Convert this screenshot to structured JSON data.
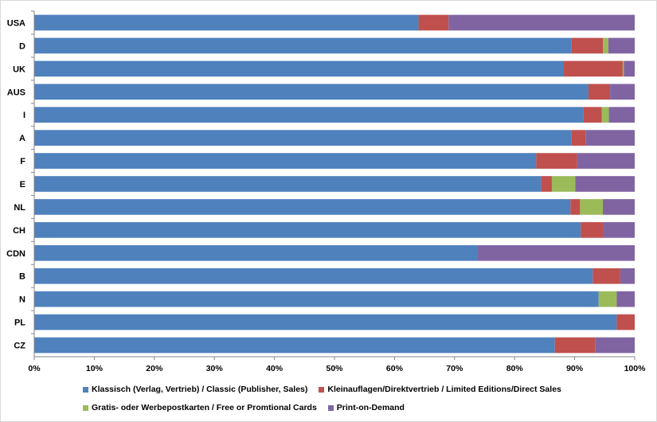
{
  "chart_data": {
    "type": "bar",
    "orientation": "horizontal",
    "stacked": "percent",
    "categories": [
      "USA",
      "D",
      "UK",
      "AUS",
      "I",
      "A",
      "F",
      "E",
      "NL",
      "CH",
      "CDN",
      "B",
      "N",
      "PL",
      "CZ"
    ],
    "series": [
      {
        "name": "Klassisch (Verlag, Vertrieb) / Classic (Publisher, Sales)",
        "color": "#4f81bd",
        "values": [
          64,
          89.5,
          88.2,
          92.3,
          91.5,
          89.5,
          83.6,
          84.4,
          89.3,
          91,
          73.8,
          93,
          94,
          97,
          86.7
        ]
      },
      {
        "name": "Kleinauflagen/Direktvertrieb / Limited Editions/Direct Sales",
        "color": "#c0504d",
        "values": [
          5,
          5.2,
          9.8,
          3.6,
          3,
          2.3,
          6.8,
          1.8,
          1.6,
          3.7,
          0,
          4.6,
          0,
          3,
          6.7
        ]
      },
      {
        "name": "Gratis- oder Werbepostkarten / Free or Promtional Cards",
        "color": "#9bbb59",
        "values": [
          0,
          0.9,
          0.2,
          0,
          1.2,
          0,
          0,
          3.9,
          3.8,
          0,
          0,
          0,
          3,
          0,
          0
        ]
      },
      {
        "name": "Print-on-Demand",
        "color": "#8064a2",
        "values": [
          31,
          4.4,
          1.8,
          4.1,
          4.3,
          8.2,
          9.6,
          9.9,
          5.3,
          5.3,
          26.2,
          2.4,
          3,
          0,
          6.6
        ]
      }
    ],
    "x_ticks": [
      "0%",
      "10%",
      "20%",
      "30%",
      "40%",
      "50%",
      "60%",
      "70%",
      "80%",
      "90%",
      "100%"
    ],
    "xlim": [
      0,
      100
    ],
    "grid": false,
    "legend_position": "bottom"
  }
}
